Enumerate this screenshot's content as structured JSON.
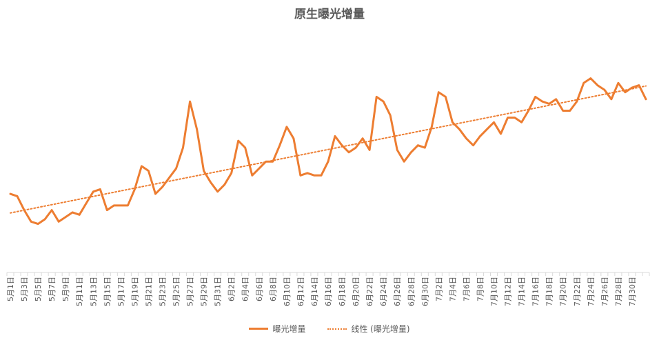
{
  "chart_data": {
    "type": "line",
    "title": "原生曝光增量",
    "xlabel": "",
    "ylabel": "",
    "ylim": [
      0,
      100
    ],
    "grid": false,
    "legend_position": "bottom",
    "tick_labels": [
      "5月1日",
      "5月3日",
      "5月5日",
      "5月7日",
      "5月9日",
      "5月11日",
      "5月13日",
      "5月15日",
      "5月17日",
      "5月19日",
      "5月21日",
      "5月23日",
      "5月25日",
      "5月27日",
      "5月29日",
      "5月31日",
      "6月2日",
      "6月4日",
      "6月6日",
      "6月8日",
      "6月10日",
      "6月12日",
      "6月14日",
      "6月16日",
      "6月18日",
      "6月20日",
      "6月22日",
      "6月24日",
      "6月26日",
      "6月28日",
      "6月30日",
      "7月2日",
      "7月4日",
      "7月6日",
      "7月8日",
      "7月10日",
      "7月12日",
      "7月14日",
      "7月16日",
      "7月18日",
      "7月20日",
      "7月22日",
      "7月24日",
      "7月26日",
      "7月28日",
      "7月30日"
    ],
    "series": [
      {
        "name": "曝光增量",
        "color": "#ED7D31",
        "style": "solid",
        "values": [
          34,
          33,
          27,
          22,
          21,
          23,
          27,
          22,
          24,
          26,
          25,
          30,
          35,
          36,
          27,
          29,
          29,
          29,
          36,
          46,
          44,
          34,
          37,
          41,
          45,
          54,
          74,
          62,
          44,
          39,
          35,
          38,
          43,
          57,
          54,
          42,
          45,
          48,
          48,
          55,
          63,
          58,
          42,
          43,
          42,
          42,
          48,
          59,
          55,
          52,
          54,
          58,
          53,
          76,
          74,
          68,
          53,
          48,
          52,
          55,
          54,
          63,
          78,
          76,
          65,
          62,
          58,
          55,
          59,
          62,
          65,
          60,
          67,
          67,
          65,
          70,
          76,
          74,
          73,
          75,
          70,
          70,
          74,
          82,
          84,
          81,
          79,
          75,
          82,
          78,
          80,
          81,
          75
        ],
        "trend_values": [
          24.8,
          84.5
        ]
      },
      {
        "name": "线性 (曝光增量)",
        "color": "#ED7D31",
        "style": "dotted",
        "type": "linear-trendline"
      }
    ]
  },
  "legend": {
    "items": [
      {
        "label": "曝光增量",
        "color": "#ED7D31",
        "style": "solid"
      },
      {
        "label": "线性 (曝光增量)",
        "color": "#ED7D31",
        "style": "dotted"
      }
    ]
  }
}
